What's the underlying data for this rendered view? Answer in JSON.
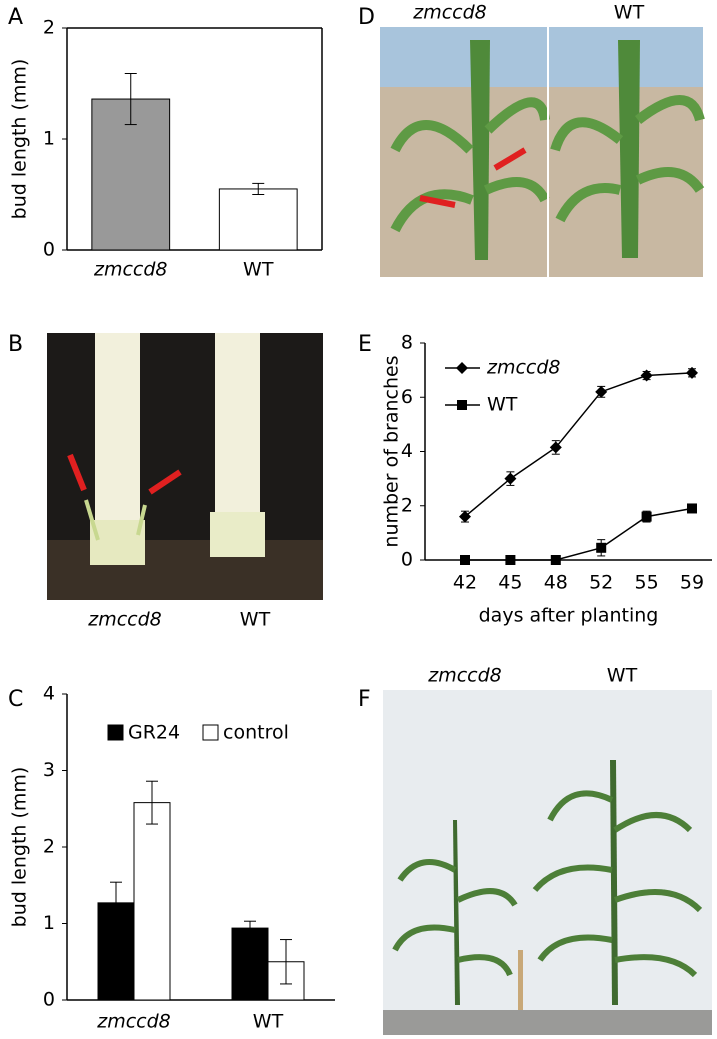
{
  "chart_data": [
    {
      "type": "bar",
      "label": "A",
      "ylabel": "bud length (mm)",
      "categories": [
        "zmccd8",
        "WT"
      ],
      "values": [
        1.36,
        0.55
      ],
      "errors": [
        0.23,
        0.05
      ],
      "colors": [
        "#999999",
        "#ffffff"
      ],
      "ylim": [
        0,
        2
      ],
      "yticks": [
        0,
        1,
        2
      ],
      "box": true
    },
    {
      "type": "bar",
      "label": "C",
      "ylabel": "bud length (mm)",
      "categories": [
        "zmccd8",
        "WT"
      ],
      "series": [
        {
          "name": "GR24",
          "color": "#000000",
          "values": [
            1.27,
            0.94
          ],
          "errors": [
            0.27,
            0.09
          ]
        },
        {
          "name": "control",
          "color": "#ffffff",
          "values": [
            2.58,
            0.5
          ],
          "errors": [
            0.28,
            0.29
          ]
        }
      ],
      "ylim": [
        0,
        4
      ],
      "yticks": [
        0,
        1,
        2,
        3,
        4
      ],
      "box": false
    },
    {
      "type": "line",
      "label": "E",
      "ylabel": "number of branches",
      "xlabel": "days after planting",
      "categories": [
        "42",
        "45",
        "48",
        "52",
        "55",
        "59"
      ],
      "series": [
        {
          "name": "zmccd8",
          "color": "#000000",
          "marker": "diamond",
          "values": [
            1.6,
            3.0,
            4.15,
            6.2,
            6.8,
            6.9
          ],
          "errors": [
            0.2,
            0.25,
            0.25,
            0.2,
            0.15,
            0.15
          ]
        },
        {
          "name": "WT",
          "color": "#000000",
          "marker": "square",
          "values": [
            0,
            0,
            0,
            0.45,
            1.6,
            1.9
          ],
          "errors": [
            0.05,
            0.05,
            0.05,
            0.3,
            0.2,
            0.15
          ]
        }
      ],
      "ylim": [
        0,
        8
      ],
      "yticks": [
        0,
        2,
        4,
        6,
        8
      ],
      "box": false
    }
  ],
  "photos": [
    {
      "label": "B",
      "captions": [
        "zmccd8",
        "WT"
      ]
    },
    {
      "label": "D",
      "captions": [
        "zmccd8",
        "WT"
      ]
    },
    {
      "label": "F",
      "captions": [
        "zmccd8",
        "WT"
      ]
    }
  ]
}
